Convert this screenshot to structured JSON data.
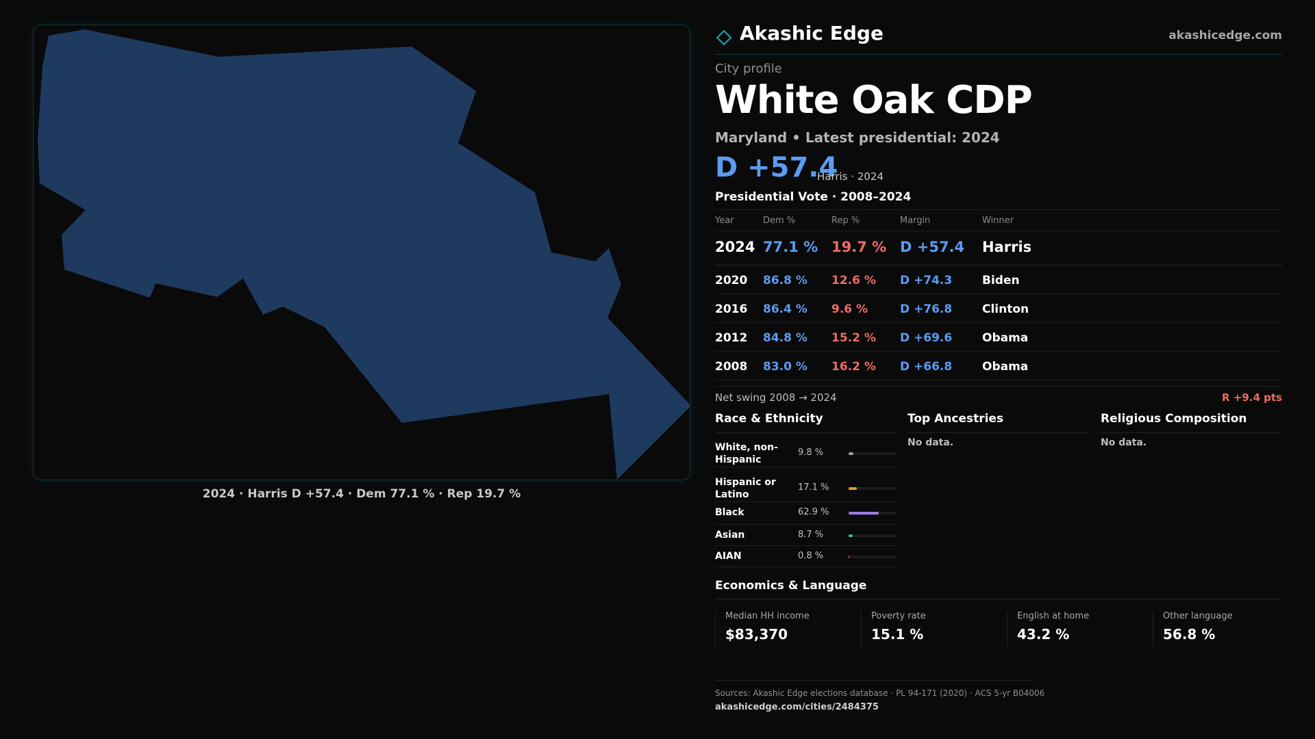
{
  "brand": {
    "icon": "diamond-icon",
    "name": "Akashic Edge",
    "url": "akashicedge.com",
    "accent_color": "#1fa6b0"
  },
  "map": {
    "region_color": "#1f3a5f",
    "caption": "2024 · Harris D +57.4 · Dem 77.1 % · Rep 19.7 %"
  },
  "profile": {
    "kicker": "City profile",
    "city": "White Oak CDP",
    "subline": "Maryland • Latest presidential: 2024",
    "margin": "D +57.4",
    "margin_note": "Harris · 2024"
  },
  "votes": {
    "title": "Presidential Vote · 2008–2024",
    "headers": {
      "year": "Year",
      "dem": "Dem %",
      "rep": "Rep %",
      "margin": "Margin",
      "winner": "Winner"
    },
    "rows": [
      {
        "year": "2024",
        "dem": "77.1 %",
        "rep": "19.7 %",
        "margin": "D +57.4",
        "winner": "Harris"
      },
      {
        "year": "2020",
        "dem": "86.8 %",
        "rep": "12.6 %",
        "margin": "D +74.3",
        "winner": "Biden"
      },
      {
        "year": "2016",
        "dem": "86.4 %",
        "rep": "9.6 %",
        "margin": "D +76.8",
        "winner": "Clinton"
      },
      {
        "year": "2012",
        "dem": "84.8 %",
        "rep": "15.2 %",
        "margin": "D +69.6",
        "winner": "Obama"
      },
      {
        "year": "2008",
        "dem": "83.0 %",
        "rep": "16.2 %",
        "margin": "D +66.8",
        "winner": "Obama"
      }
    ],
    "colors": {
      "dem": "#5b9cf2",
      "rep": "#ef6b64"
    }
  },
  "swing": {
    "label": "Net swing 2008 → 2024",
    "value": "R +9.4 pts"
  },
  "race": {
    "title": "Race & Ethnicity",
    "rows": [
      {
        "label": "White, non-Hispanic",
        "pct": "9.8 %",
        "value": 9.8,
        "color": "#9aa0b4"
      },
      {
        "label": "Hispanic or Latino",
        "pct": "17.1 %",
        "value": 17.1,
        "color": "#e0992e"
      },
      {
        "label": "Black",
        "pct": "62.9 %",
        "value": 62.9,
        "color": "#9b7ee6"
      },
      {
        "label": "Asian",
        "pct": "8.7 %",
        "value": 8.7,
        "color": "#2fbf8f"
      },
      {
        "label": "AIAN",
        "pct": "0.8 %",
        "value": 0.8,
        "color": "#e0673e"
      }
    ]
  },
  "ancestries": {
    "title": "Top Ancestries",
    "empty": "No data."
  },
  "religion": {
    "title": "Religious Composition",
    "empty": "No data."
  },
  "economics": {
    "title": "Economics & Language",
    "cells": [
      {
        "label": "Median HH income",
        "value": "$83,370"
      },
      {
        "label": "Poverty rate",
        "value": "15.1 %"
      },
      {
        "label": "English at home",
        "value": "43.2 %"
      },
      {
        "label": "Other language",
        "value": "56.8 %"
      }
    ]
  },
  "sources": {
    "text": "Sources: Akashic Edge elections database · PL 94-171 (2020) · ACS 5-yr B04006",
    "url": "akashicedge.com/cities/2484375"
  }
}
